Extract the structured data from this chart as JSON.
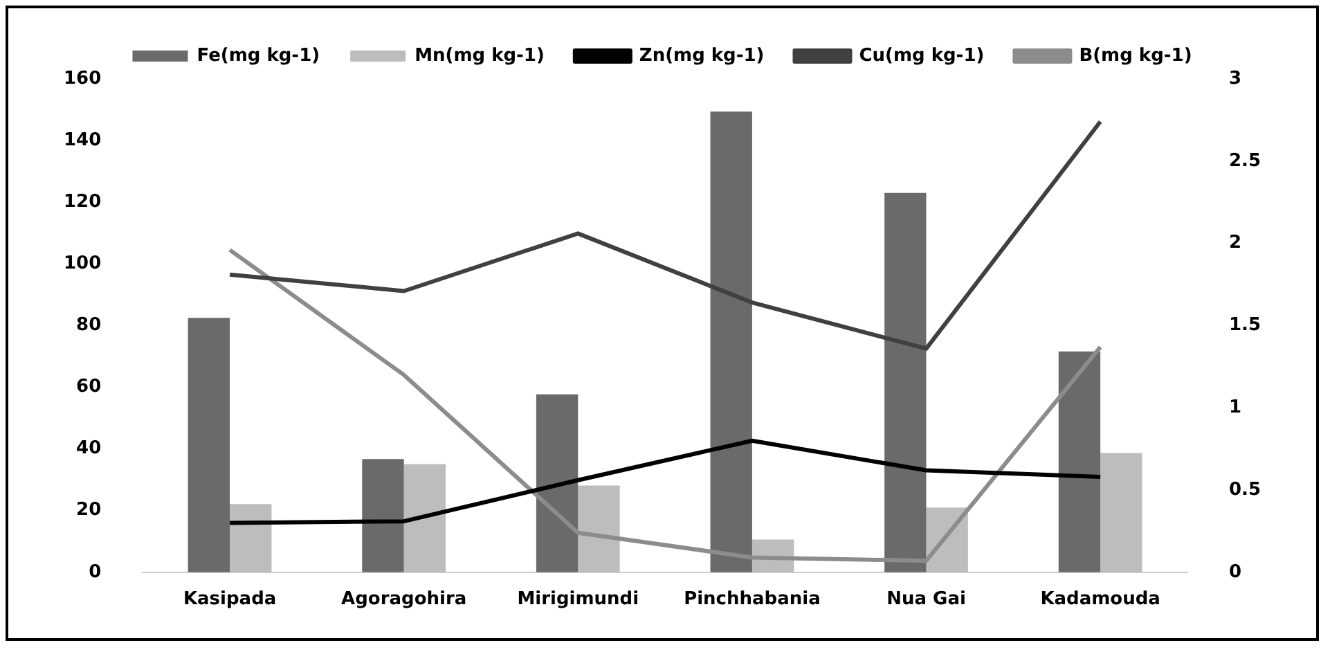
{
  "chart_data": {
    "type": "bar",
    "categories": [
      "Kasipada",
      "Agoragohira",
      "Mirigimundi",
      "Pinchhabania",
      "Nua Gai",
      "Kadamouda"
    ],
    "series": [
      {
        "name": "Fe(mg kg-1)",
        "color": "#6a6a6a",
        "values": [
          82.5,
          36.7,
          57.7,
          149.4,
          123,
          71.6
        ]
      },
      {
        "name": "Mn(mg kg-1)",
        "color": "#bdbdbd",
        "values": [
          22.1,
          35.1,
          28.1,
          10.6,
          21,
          38.7
        ]
      },
      {
        "name": "Zn(mg kg-1)",
        "type": "line",
        "axis": "y2",
        "color": "#000000",
        "values": [
          0.3,
          0.31,
          0.56,
          0.8,
          0.62,
          0.58
        ]
      },
      {
        "name": "Cu(mg kg-1)",
        "type": "line",
        "axis": "y2",
        "color": "#404040",
        "values": [
          1.81,
          1.71,
          2.06,
          1.64,
          1.36,
          2.74
        ]
      },
      {
        "name": "B(mg kg-1)",
        "type": "line",
        "axis": "y2",
        "color": "#8c8c8c",
        "values": [
          1.96,
          1.2,
          0.24,
          0.09,
          0.07,
          1.37
        ]
      }
    ],
    "ylim": [
      0,
      160
    ],
    "yticks": [
      0,
      20,
      40,
      60,
      80,
      100,
      120,
      140,
      160
    ],
    "y2lim": [
      0,
      3
    ],
    "y2ticks": [
      0,
      0.5,
      1,
      1.5,
      2,
      2.5,
      3
    ],
    "legend": "top",
    "grid": false,
    "marker": "none"
  }
}
